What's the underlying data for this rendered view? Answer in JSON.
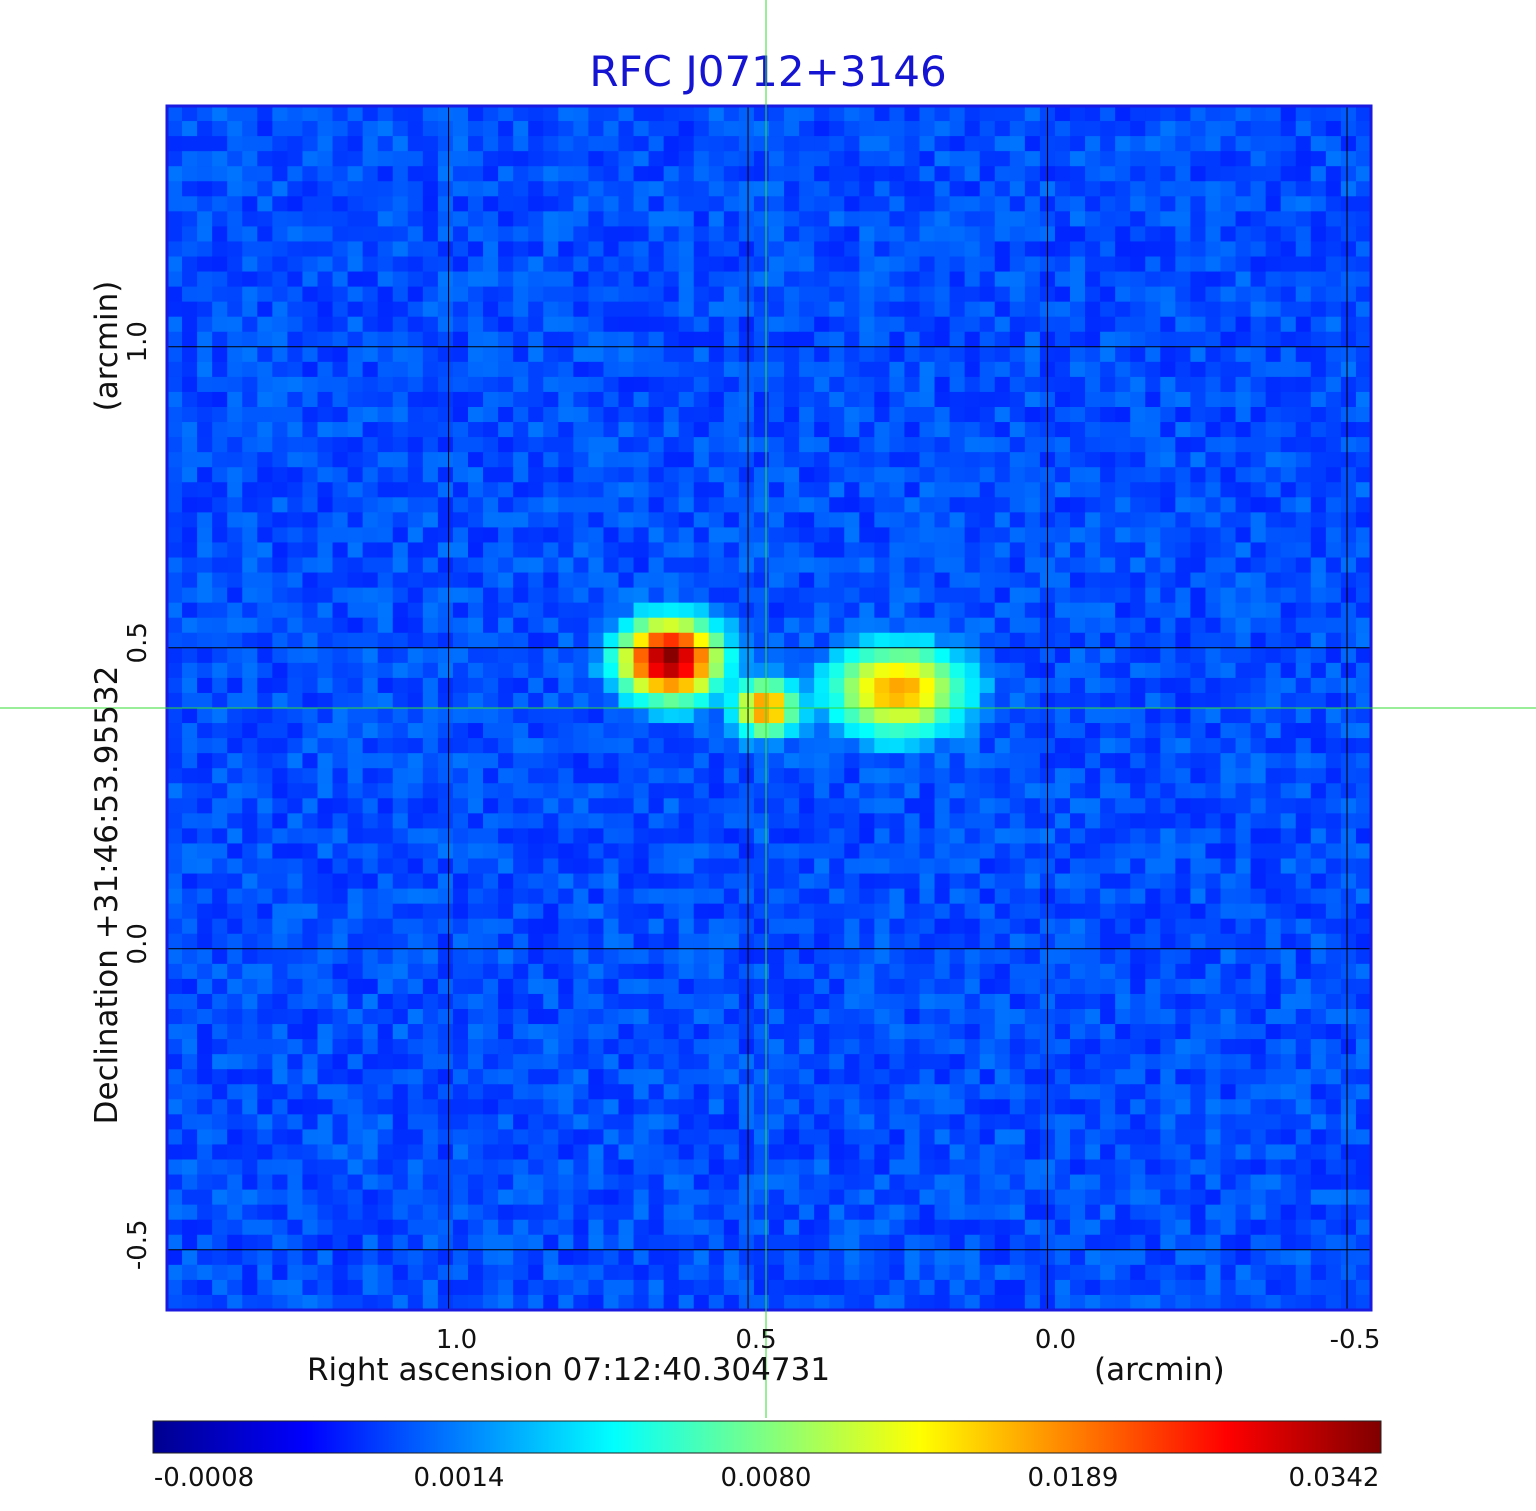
{
  "chart_data": {
    "type": "heatmap",
    "title": "RFC J0712+3146",
    "xlabel": "Right ascension  07:12:40.304731",
    "xlabel_unit": "(arcmin)",
    "ylabel": "Declination  +31:46:53.95532",
    "ylabel_unit": "(arcmin)",
    "x_ticks": [
      "1.0",
      "0.5",
      "0.0",
      "-0.5"
    ],
    "x_tick_values": [
      1.0,
      0.5,
      0.0,
      -0.5
    ],
    "y_ticks": [
      "1.0",
      "0.5",
      "0.0",
      "-0.5"
    ],
    "y_tick_values": [
      1.0,
      0.5,
      0.0,
      -0.5
    ],
    "xlim": [
      1.47,
      -0.54
    ],
    "ylim": [
      -0.6,
      1.4
    ],
    "grid": true,
    "colormap": "jet",
    "colorbar_ticks": [
      "-0.0008",
      "0.0014",
      "0.0080",
      "0.0189",
      "0.0342"
    ],
    "colorbar_values": [
      -0.0008,
      0.0014,
      0.008,
      0.0189,
      0.0342
    ],
    "crosshair": {
      "x": 0.47,
      "y": 0.4,
      "color": "#33dd33"
    },
    "background_level": 0.0,
    "noise_level": 0.0004,
    "sources": [
      {
        "x": 0.63,
        "y": 0.48,
        "peak": 0.0342,
        "sigma_x": 0.045,
        "sigma_y": 0.035
      },
      {
        "x": 0.47,
        "y": 0.4,
        "peak": 0.018,
        "sigma_x": 0.028,
        "sigma_y": 0.025
      },
      {
        "x": 0.25,
        "y": 0.43,
        "peak": 0.016,
        "sigma_x": 0.06,
        "sigma_y": 0.04
      }
    ],
    "colors": {
      "title": "#1414d2",
      "frame": "#1a1ae0",
      "grid": "#000000",
      "crosshair": "#33dd33"
    }
  }
}
